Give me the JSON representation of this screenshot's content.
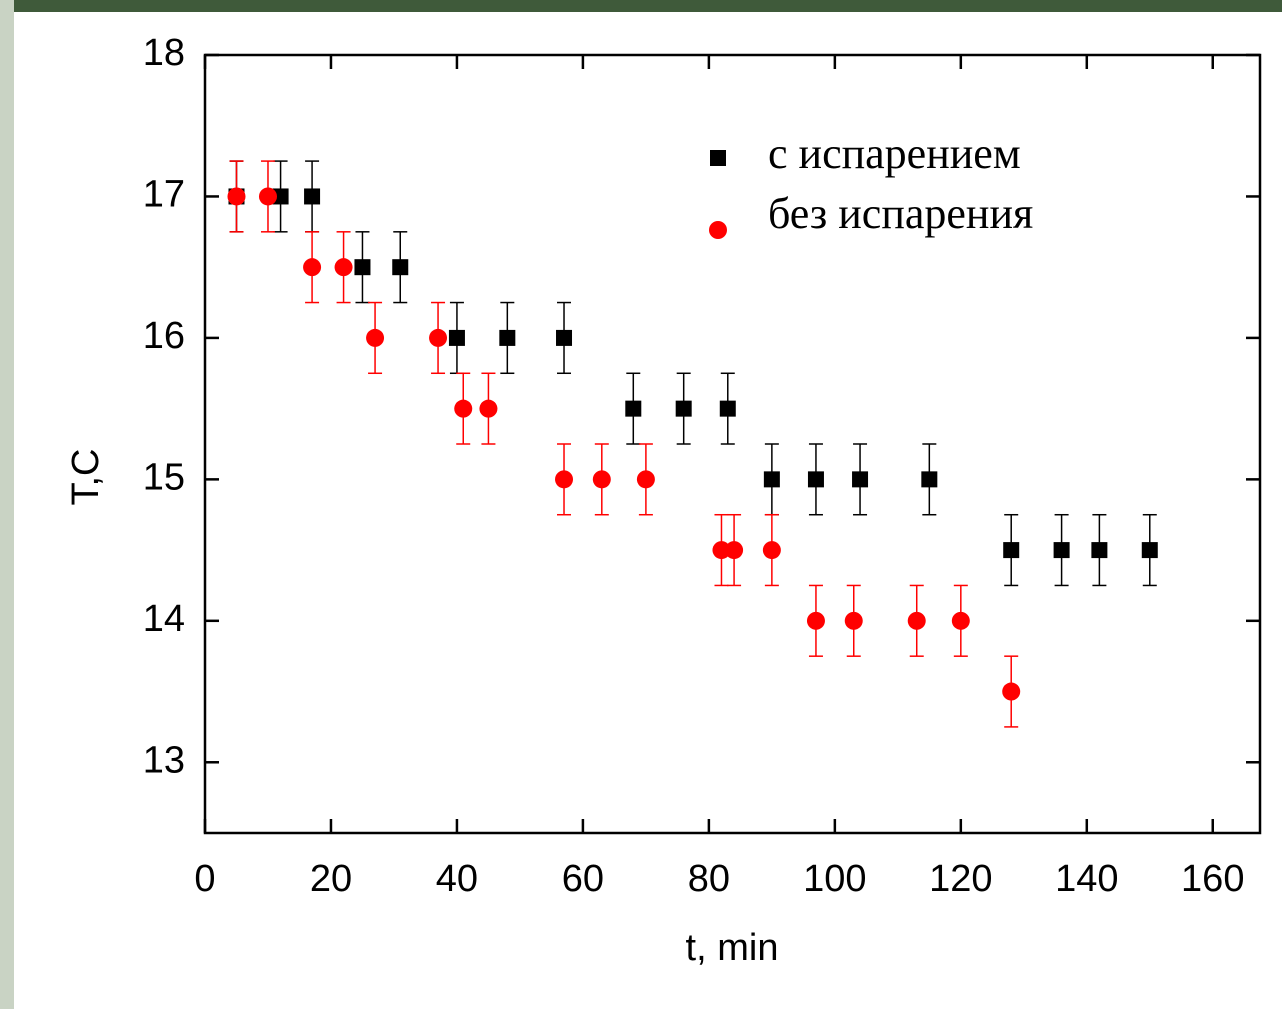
{
  "chart_data": {
    "type": "scatter",
    "x_label": "t, min",
    "y_label": "T,C",
    "xlim": [
      0,
      167.5
    ],
    "ylim": [
      12.5,
      18
    ],
    "xticks": [
      0,
      20,
      40,
      60,
      80,
      100,
      120,
      140,
      160
    ],
    "yticks": [
      13,
      14,
      15,
      16,
      17,
      18
    ],
    "legend": "upper right",
    "series": [
      {
        "name": "с испарением",
        "color": "#000000",
        "marker": "square",
        "x": [
          5,
          12,
          17,
          25,
          31,
          40,
          48,
          57,
          68,
          76,
          83,
          90,
          97,
          104,
          115,
          128,
          136,
          142,
          150
        ],
        "values": [
          17,
          17,
          17,
          16.5,
          16.5,
          16,
          16,
          16,
          15.5,
          15.5,
          15.5,
          15,
          15,
          15,
          15,
          14.5,
          14.5,
          14.5,
          14.5
        ],
        "errors": [
          0.25,
          0.25,
          0.25,
          0.25,
          0.25,
          0.25,
          0.25,
          0.25,
          0.25,
          0.25,
          0.25,
          0.25,
          0.25,
          0.25,
          0.25,
          0.25,
          0.25,
          0.25,
          0.25
        ]
      },
      {
        "name": "без испарения",
        "color": "#ff0000",
        "marker": "circle",
        "x": [
          5,
          10,
          17,
          22,
          27,
          37,
          41,
          45,
          57,
          63,
          70,
          82,
          84,
          90,
          97,
          103,
          113,
          120,
          128
        ],
        "values": [
          17,
          17,
          16.5,
          16.5,
          16,
          16,
          15.5,
          15.5,
          15,
          15,
          15,
          14.5,
          14.5,
          14.5,
          14,
          14,
          14,
          14,
          13.5
        ],
        "errors": [
          0.25,
          0.25,
          0.25,
          0.25,
          0.25,
          0.25,
          0.25,
          0.25,
          0.25,
          0.25,
          0.25,
          0.25,
          0.25,
          0.25,
          0.25,
          0.25,
          0.25,
          0.25,
          0.25
        ]
      }
    ]
  }
}
